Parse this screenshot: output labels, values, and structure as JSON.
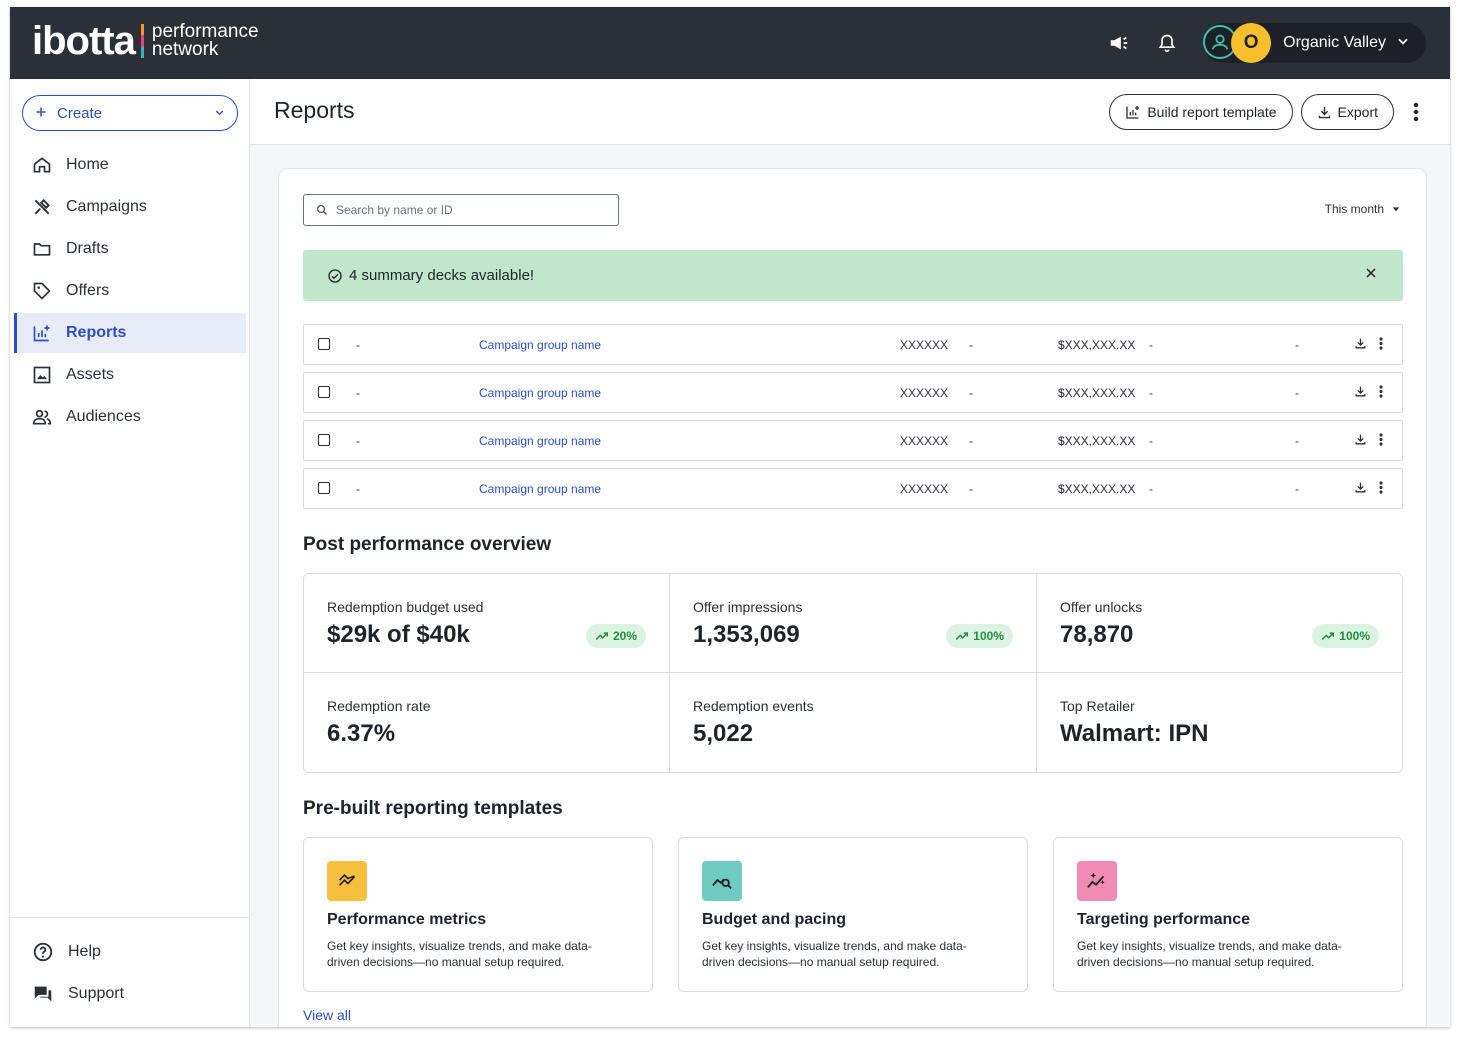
{
  "brand": {
    "word": "ibotta",
    "line1": "performance",
    "line2": "network"
  },
  "account": {
    "initial": "O",
    "name": "Organic Valley"
  },
  "sidebar": {
    "create_label": "Create",
    "items": [
      {
        "label": "Home",
        "icon": "home-icon"
      },
      {
        "label": "Campaigns",
        "icon": "tools-icon"
      },
      {
        "label": "Drafts",
        "icon": "folder-icon"
      },
      {
        "label": "Offers",
        "icon": "tag-icon"
      },
      {
        "label": "Reports",
        "icon": "reports-icon",
        "active": true
      },
      {
        "label": "Assets",
        "icon": "image-icon"
      },
      {
        "label": "Audiences",
        "icon": "people-icon"
      }
    ],
    "bottom": [
      {
        "label": "Help",
        "icon": "help-icon"
      },
      {
        "label": "Support",
        "icon": "chat-icon"
      }
    ]
  },
  "header": {
    "title": "Reports",
    "build_template_label": "Build report template",
    "export_label": "Export"
  },
  "filters": {
    "search_placeholder": "Search by name or ID",
    "period_label": "This month"
  },
  "banner": {
    "text": "4 summary decks available!"
  },
  "report_rows": [
    {
      "c1": "-",
      "name": "Campaign group name",
      "id": "XXXXXX",
      "c4": "-",
      "amount": "$XXX,XXX.XX",
      "c6": "-",
      "c7": "-"
    },
    {
      "c1": "-",
      "name": "Campaign group name",
      "id": "XXXXXX",
      "c4": "-",
      "amount": "$XXX,XXX.XX",
      "c6": "-",
      "c7": "-"
    },
    {
      "c1": "-",
      "name": "Campaign group name",
      "id": "XXXXXX",
      "c4": "-",
      "amount": "$XXX,XXX.XX",
      "c6": "-",
      "c7": "-"
    },
    {
      "c1": "-",
      "name": "Campaign group name",
      "id": "XXXXXX",
      "c4": "-",
      "amount": "$XXX,XXX.XX",
      "c6": "-",
      "c7": "-"
    }
  ],
  "overview": {
    "title": "Post performance overview",
    "metrics": [
      {
        "label": "Redemption budget used",
        "value": "$29k of $40k",
        "badge": "20%"
      },
      {
        "label": "Offer impressions",
        "value": "1,353,069",
        "badge": "100%"
      },
      {
        "label": "Offer unlocks",
        "value": "78,870",
        "badge": "100%"
      },
      {
        "label": "Redemption rate",
        "value": "6.37%"
      },
      {
        "label": "Redemption events",
        "value": "5,022"
      },
      {
        "label": "Top Retailer",
        "value": "Walmart: IPN"
      }
    ]
  },
  "templates": {
    "title": "Pre-built reporting templates",
    "items": [
      {
        "title": "Performance metrics",
        "desc": "Get key insights, visualize trends, and make data-driven decisions—no manual setup required.",
        "icon": "trend-icon",
        "color": "#f7bf3e"
      },
      {
        "title": "Budget and pacing",
        "desc": "Get key insights, visualize trends, and make data-driven decisions—no manual setup required.",
        "icon": "analytics-search-icon",
        "color": "#6fcbc2"
      },
      {
        "title": "Targeting performance",
        "desc": "Get key insights, visualize trends, and make data-driven decisions—no manual setup required.",
        "icon": "sparkle-trend-icon",
        "color": "#f08cb4"
      }
    ],
    "view_all_label": "View all"
  }
}
